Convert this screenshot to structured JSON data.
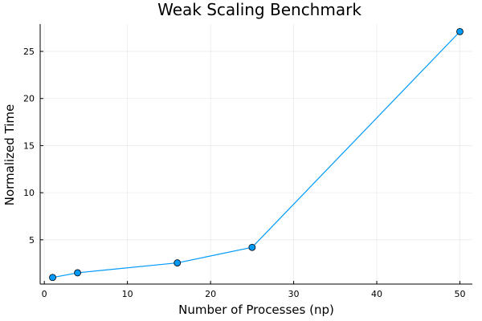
{
  "chart_data": {
    "type": "line",
    "title": "Weak Scaling Benchmark",
    "xlabel": "Number of Processes (np)",
    "ylabel": "Normalized Time",
    "xlim": [
      -0.5,
      51.5
    ],
    "ylim": [
      0.3,
      27.9
    ],
    "xticks": [
      0,
      10,
      20,
      30,
      40,
      50
    ],
    "yticks": [
      5,
      10,
      15,
      20,
      25
    ],
    "grid": true,
    "legend": "none",
    "series": [
      {
        "x": [
          1,
          4,
          16,
          25,
          50
        ],
        "y": [
          1.0,
          1.5,
          2.55,
          4.2,
          27.1
        ],
        "color": "#009af9",
        "marker": "circle"
      }
    ]
  }
}
